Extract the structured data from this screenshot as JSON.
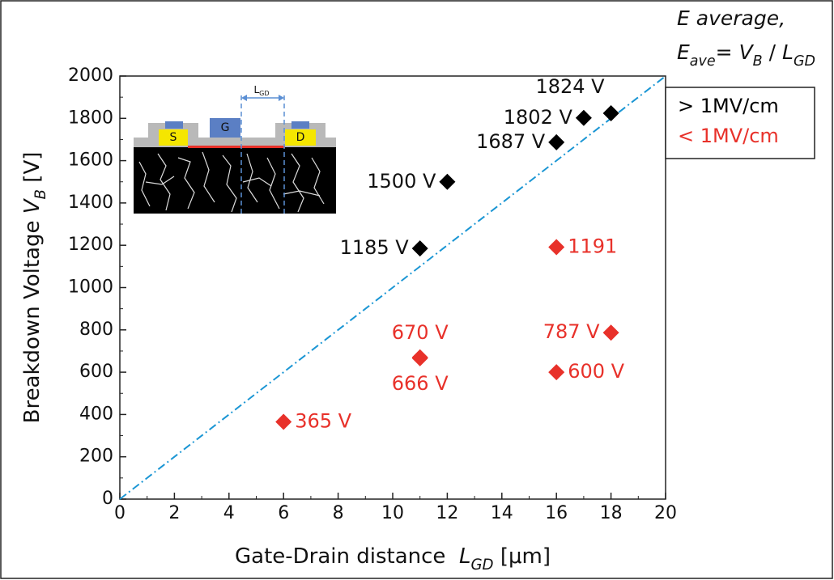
{
  "chart_data": {
    "type": "scatter",
    "legend_title": "E average,",
    "formula": [
      {
        "var": "E",
        "sub": "ave"
      },
      {
        "text": "= "
      },
      {
        "var": "V",
        "sub": "B"
      },
      {
        "text": " / "
      },
      {
        "var": "L",
        "sub": "GD"
      }
    ],
    "x_label": [
      {
        "text": "Gate-Drain distance  "
      },
      {
        "var": "L",
        "sub": "GD"
      },
      {
        "text": " [μm]"
      }
    ],
    "y_label": [
      {
        "text": "Breakdown Voltage "
      },
      {
        "var": "V",
        "sub": "B"
      },
      {
        "text": " [V]"
      }
    ],
    "xlim": [
      0,
      20
    ],
    "xticks": [
      0,
      2,
      4,
      6,
      8,
      10,
      12,
      14,
      16,
      18,
      20
    ],
    "ylim": [
      0,
      2000
    ],
    "yticks": [
      0,
      200,
      400,
      600,
      800,
      1000,
      1200,
      1400,
      1600,
      1800,
      2000
    ],
    "legend": "right",
    "reference_line": {
      "color": "#1b96d4",
      "x": [
        0,
        20
      ],
      "y": [
        0,
        2000
      ]
    },
    "series": [
      {
        "name": "> 1MV/cm",
        "color": "#000000",
        "x": [
          11,
          12,
          16,
          17,
          18
        ],
        "values": [
          1185,
          1500,
          1687,
          1802,
          1824
        ],
        "value_labels": [
          "1185 V",
          "1500 V",
          "1687 V",
          "1802 V",
          "1824 V"
        ]
      },
      {
        "name": "< 1MV/cm",
        "color": "#e8312a",
        "x": [
          6,
          11,
          11,
          16,
          16,
          18
        ],
        "values": [
          365,
          670,
          666,
          600,
          1191,
          787
        ],
        "value_labels": [
          "365 V",
          "670 V",
          "666 V",
          "600 V",
          "1191",
          "787 V"
        ]
      }
    ],
    "inset": {
      "labels": [
        "S",
        "G",
        "D"
      ],
      "dimension": {
        "var": "L",
        "sub": "GD"
      }
    }
  }
}
